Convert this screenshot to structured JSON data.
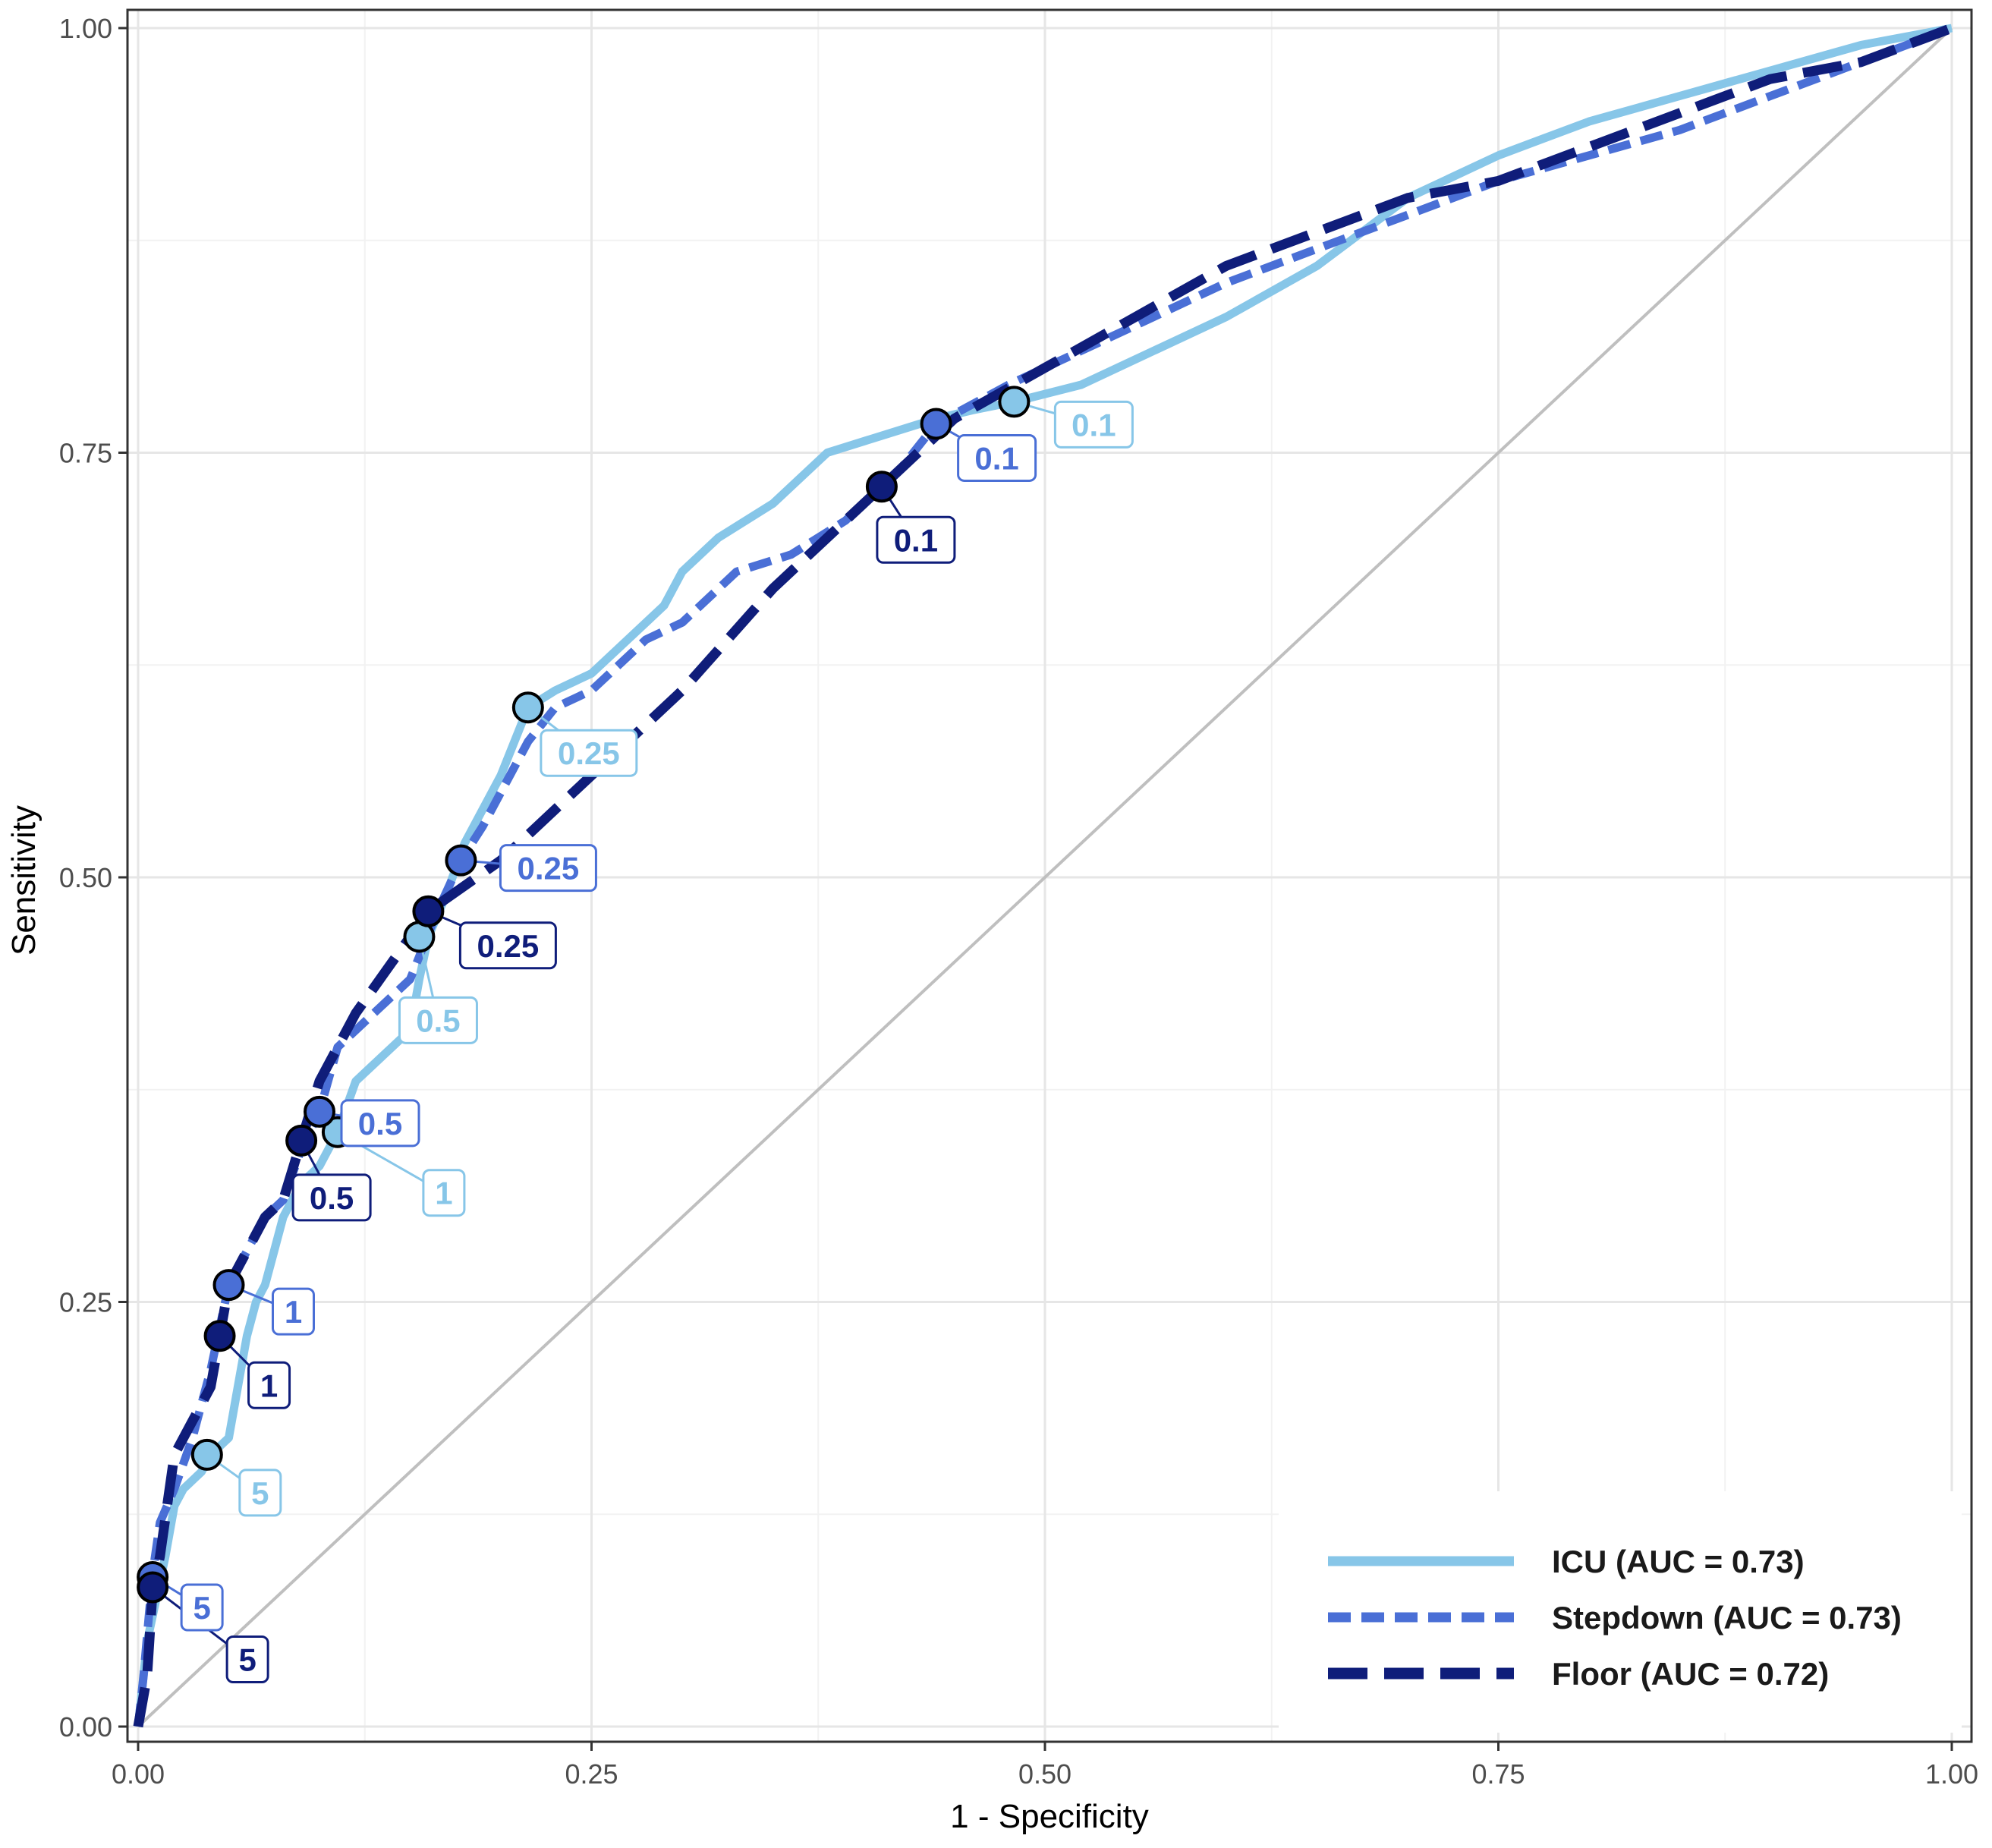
{
  "chart_data": {
    "type": "line",
    "title": "",
    "xlabel": "1 - Specificity",
    "ylabel": "Sensitivity",
    "xlim": [
      0,
      1
    ],
    "ylim": [
      0,
      1
    ],
    "x_ticks": [
      "0.00",
      "0.25",
      "0.50",
      "0.75",
      "1.00"
    ],
    "y_ticks": [
      "0.00",
      "0.25",
      "0.50",
      "0.75",
      "1.00"
    ],
    "grid": true,
    "legend_position": "bottom-right",
    "reference_line": {
      "x": [
        0,
        1
      ],
      "y": [
        0,
        1
      ],
      "color": "#bfbfbf"
    },
    "series": [
      {
        "name": "ICU (AUC = 0.73)",
        "color": "#87c6e8",
        "dash": "solid",
        "x": [
          0,
          0.005,
          0.015,
          0.02,
          0.025,
          0.035,
          0.04,
          0.05,
          0.055,
          0.06,
          0.065,
          0.07,
          0.08,
          0.09,
          0.1,
          0.11,
          0.12,
          0.13,
          0.15,
          0.155,
          0.16,
          0.17,
          0.18,
          0.19,
          0.2,
          0.215,
          0.23,
          0.25,
          0.27,
          0.28,
          0.29,
          0.3,
          0.32,
          0.35,
          0.38,
          0.41,
          0.44,
          0.46,
          0.483,
          0.52,
          0.56,
          0.6,
          0.65,
          0.7,
          0.75,
          0.8,
          0.85,
          0.9,
          0.95,
          1.0
        ],
        "y": [
          0,
          0.05,
          0.1,
          0.13,
          0.14,
          0.15,
          0.16,
          0.17,
          0.2,
          0.23,
          0.25,
          0.26,
          0.3,
          0.32,
          0.33,
          0.35,
          0.38,
          0.39,
          0.41,
          0.44,
          0.465,
          0.49,
          0.52,
          0.54,
          0.56,
          0.6,
          0.61,
          0.62,
          0.64,
          0.65,
          0.66,
          0.68,
          0.7,
          0.72,
          0.75,
          0.76,
          0.77,
          0.775,
          0.78,
          0.79,
          0.81,
          0.83,
          0.86,
          0.9,
          0.925,
          0.945,
          0.96,
          0.975,
          0.99,
          1.0
        ]
      },
      {
        "name": "Stepdown (AUC = 0.73)",
        "color": "#4a6fd6",
        "dash": "short",
        "x": [
          0,
          0.003,
          0.008,
          0.012,
          0.02,
          0.03,
          0.04,
          0.05,
          0.06,
          0.07,
          0.08,
          0.09,
          0.1,
          0.11,
          0.13,
          0.15,
          0.165,
          0.178,
          0.19,
          0.2,
          0.215,
          0.23,
          0.25,
          0.28,
          0.3,
          0.33,
          0.36,
          0.39,
          0.42,
          0.44,
          0.48,
          0.52,
          0.56,
          0.6,
          0.65,
          0.7,
          0.75,
          0.8,
          0.85,
          0.9,
          0.95,
          1.0
        ],
        "y": [
          0,
          0.03,
          0.09,
          0.12,
          0.14,
          0.17,
          0.21,
          0.26,
          0.28,
          0.3,
          0.31,
          0.34,
          0.362,
          0.4,
          0.42,
          0.44,
          0.48,
          0.51,
          0.53,
          0.55,
          0.58,
          0.6,
          0.61,
          0.64,
          0.65,
          0.68,
          0.69,
          0.71,
          0.74,
          0.767,
          0.79,
          0.81,
          0.83,
          0.85,
          0.87,
          0.89,
          0.91,
          0.925,
          0.94,
          0.96,
          0.98,
          1.0
        ]
      },
      {
        "name": "Floor (AUC = 0.72)",
        "color": "#0f1d7a",
        "dash": "long",
        "x": [
          0,
          0.005,
          0.008,
          0.012,
          0.02,
          0.03,
          0.04,
          0.045,
          0.05,
          0.06,
          0.07,
          0.08,
          0.09,
          0.1,
          0.12,
          0.14,
          0.16,
          0.2,
          0.25,
          0.3,
          0.35,
          0.41,
          0.45,
          0.5,
          0.55,
          0.6,
          0.65,
          0.7,
          0.75,
          0.8,
          0.85,
          0.9,
          0.95,
          1.0
        ],
        "y": [
          0,
          0.03,
          0.08,
          0.1,
          0.16,
          0.18,
          0.2,
          0.23,
          0.26,
          0.28,
          0.3,
          0.31,
          0.345,
          0.38,
          0.42,
          0.45,
          0.48,
          0.51,
          0.56,
          0.61,
          0.67,
          0.73,
          0.77,
          0.8,
          0.83,
          0.86,
          0.88,
          0.9,
          0.91,
          0.93,
          0.95,
          0.97,
          0.98,
          1.0
        ]
      }
    ],
    "thresholds": [
      {
        "series": 0,
        "label": "0.1",
        "x": 0.483,
        "y": 0.78
      },
      {
        "series": 0,
        "label": "0.25",
        "x": 0.215,
        "y": 0.6
      },
      {
        "series": 0,
        "label": "0.5",
        "x": 0.155,
        "y": 0.465
      },
      {
        "series": 0,
        "label": "1",
        "x": 0.11,
        "y": 0.35
      },
      {
        "series": 0,
        "label": "5",
        "x": 0.038,
        "y": 0.16
      },
      {
        "series": 1,
        "label": "0.1",
        "x": 0.44,
        "y": 0.767
      },
      {
        "series": 1,
        "label": "0.25",
        "x": 0.178,
        "y": 0.51
      },
      {
        "series": 1,
        "label": "0.5",
        "x": 0.1,
        "y": 0.362
      },
      {
        "series": 1,
        "label": "1",
        "x": 0.05,
        "y": 0.26
      },
      {
        "series": 1,
        "label": "5",
        "x": 0.008,
        "y": 0.088
      },
      {
        "series": 2,
        "label": "0.1",
        "x": 0.41,
        "y": 0.73
      },
      {
        "series": 2,
        "label": "0.25",
        "x": 0.16,
        "y": 0.48
      },
      {
        "series": 2,
        "label": "0.5",
        "x": 0.09,
        "y": 0.345
      },
      {
        "series": 2,
        "label": "1",
        "x": 0.045,
        "y": 0.23
      },
      {
        "series": 2,
        "label": "5",
        "x": 0.008,
        "y": 0.082
      }
    ]
  }
}
